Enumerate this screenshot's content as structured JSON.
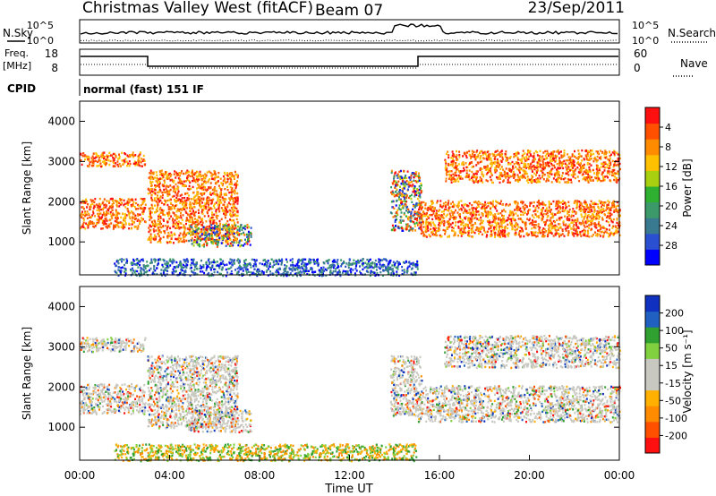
{
  "header": {
    "title": "Christmas Valley West (fitACF)",
    "beam": "Beam 07",
    "date": "23/Sep/2011"
  },
  "params": {
    "nsky_label": "N.Sky",
    "nsky_ticks": [
      "10^5",
      "10^0"
    ],
    "nsearch_label": "N.Search",
    "nsearch_ticks": [
      "10^5",
      "10^0"
    ],
    "freq_label": "Freq.",
    "freq_unit": "[MHz]",
    "freq_ticks": [
      "18",
      "8"
    ],
    "nave_label": "Nave",
    "nave_ticks": [
      "60",
      "0"
    ],
    "cpid_label": "CPID",
    "cpid_text": "normal (fast) 151 IF"
  },
  "colors": {
    "power": [
      "#0000ff",
      "#2a4fd0",
      "#3a7a90",
      "#3c9a6a",
      "#30b030",
      "#a8d010",
      "#ffc000",
      "#ff8c00",
      "#ff5000",
      "#ff1010"
    ],
    "velocity": [
      "#ff1010",
      "#ff5000",
      "#ff8c00",
      "#ffb000",
      "#c8c8c0",
      "#c8c8c0",
      "#80d040",
      "#30a030",
      "#2060c0",
      "#1030c0"
    ]
  },
  "chart_data": [
    {
      "type": "heatmap",
      "name": "power",
      "ylabel": "Slant Range [km]",
      "yticks": [
        "1000",
        "2000",
        "3000",
        "4000"
      ],
      "ylim": [
        180,
        4500
      ],
      "xlim": [
        0,
        24
      ],
      "colorbar_label": "Power [dB]",
      "colorbar_ticks": [
        "4",
        "8",
        "12",
        "16",
        "20",
        "24",
        "28"
      ],
      "bands": [
        {
          "x0": 0.0,
          "x1": 2.9,
          "y0": 1350,
          "y1": 2100,
          "level": "high"
        },
        {
          "x0": 0.0,
          "x1": 2.9,
          "y0": 2900,
          "y1": 3250,
          "level": "high"
        },
        {
          "x0": 3.0,
          "x1": 7.0,
          "y0": 1000,
          "y1": 2800,
          "level": "high"
        },
        {
          "x0": 4.8,
          "x1": 7.6,
          "y0": 900,
          "y1": 1450,
          "level": "mixed"
        },
        {
          "x0": 1.5,
          "x1": 15.0,
          "y0": 180,
          "y1": 600,
          "level": "low"
        },
        {
          "x0": 13.8,
          "x1": 15.2,
          "y0": 1300,
          "y1": 2800,
          "level": "mixed"
        },
        {
          "x0": 15.0,
          "x1": 24.0,
          "y0": 1150,
          "y1": 2050,
          "level": "high"
        },
        {
          "x0": 16.2,
          "x1": 24.0,
          "y0": 2500,
          "y1": 3300,
          "level": "high"
        }
      ]
    },
    {
      "type": "heatmap",
      "name": "velocity",
      "ylabel": "Slant Range [km]",
      "yticks": [
        "1000",
        "2000",
        "3000",
        "4000"
      ],
      "ylim": [
        180,
        4500
      ],
      "xlim": [
        0,
        24
      ],
      "xlabel": "Time UT",
      "xticks": [
        "00:00",
        "04:00",
        "08:00",
        "12:00",
        "16:00",
        "20:00",
        "00:00"
      ],
      "colorbar_label": "Velocity [m s⁻¹]",
      "colorbar_ticks": [
        "200",
        "100",
        "50",
        "15",
        "-15",
        "-50",
        "-100",
        "-200"
      ]
    }
  ]
}
